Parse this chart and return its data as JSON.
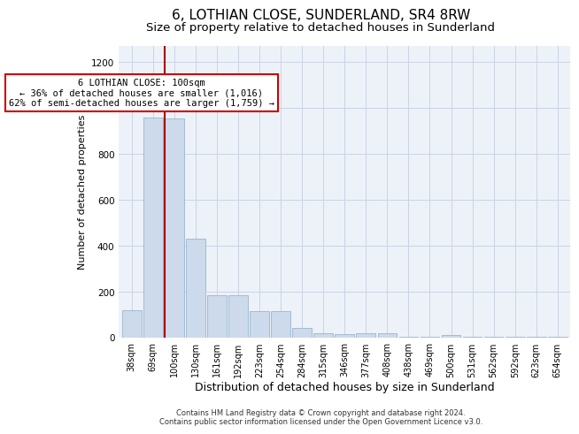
{
  "title": "6, LOTHIAN CLOSE, SUNDERLAND, SR4 8RW",
  "subtitle": "Size of property relative to detached houses in Sunderland",
  "xlabel": "Distribution of detached houses by size in Sunderland",
  "ylabel": "Number of detached properties",
  "footer_line1": "Contains HM Land Registry data © Crown copyright and database right 2024.",
  "footer_line2": "Contains public sector information licensed under the Open Government Licence v3.0.",
  "categories": [
    "38sqm",
    "69sqm",
    "100sqm",
    "130sqm",
    "161sqm",
    "192sqm",
    "223sqm",
    "254sqm",
    "284sqm",
    "315sqm",
    "346sqm",
    "377sqm",
    "408sqm",
    "438sqm",
    "469sqm",
    "500sqm",
    "531sqm",
    "562sqm",
    "592sqm",
    "623sqm",
    "654sqm"
  ],
  "values": [
    120,
    960,
    955,
    430,
    185,
    183,
    115,
    115,
    42,
    20,
    15,
    20,
    20,
    2,
    2,
    10,
    2,
    2,
    2,
    2,
    2
  ],
  "bar_color": "#ccdaeb",
  "bar_edge_color": "#9ab4cc",
  "vline_color": "#aa0000",
  "vline_index": 2,
  "annotation_text": "6 LOTHIAN CLOSE: 100sqm\n← 36% of detached houses are smaller (1,016)\n62% of semi-detached houses are larger (1,759) →",
  "ylim": [
    0,
    1270
  ],
  "yticks": [
    0,
    200,
    400,
    600,
    800,
    1000,
    1200
  ],
  "grid_color": "#c8d4e4",
  "bg_color": "#edf2f9",
  "title_fontsize": 11,
  "subtitle_fontsize": 9.5,
  "tick_fontsize": 7,
  "ylabel_fontsize": 8,
  "xlabel_fontsize": 9,
  "footer_fontsize": 6,
  "annot_fontsize": 7.5
}
